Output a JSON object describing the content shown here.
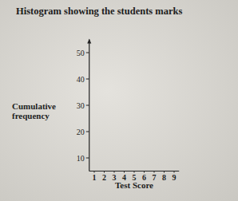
{
  "chart_data": {
    "type": "histogram",
    "title": "Histogram showing the students marks",
    "xlabel": "Test Score",
    "ylabel": "Cumulative frequency",
    "xlim": [
      0.5,
      9.5
    ],
    "xticks": [
      1,
      2,
      3,
      4,
      5,
      6,
      7,
      8,
      9
    ],
    "ylim": [
      5,
      55
    ],
    "yticks": [
      10,
      20,
      30,
      40,
      50
    ],
    "grid": false
  }
}
